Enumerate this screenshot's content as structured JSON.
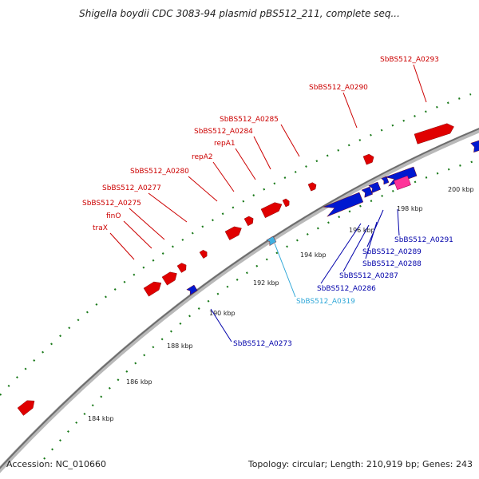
{
  "title": "Shigella boydii CDC 3083-94 plasmid pBS512_211, complete seq...",
  "footer": {
    "accession": "Accession: NC_010660",
    "summary": "Topology: circular; Length: 210,919 bp; Genes: 243"
  },
  "colors": {
    "backbone": "#8a8a8a",
    "tick": "#1a7a1a",
    "forward_gene": "#e00000",
    "reverse_gene": "#0018d0",
    "highlight_gene": "#40b0e0",
    "other_gene": "#ff3399",
    "forward_label": "#cc0000",
    "reverse_label": "#0000aa",
    "highlight_label": "#30a8d8"
  },
  "scale_labels": [
    "184 kbp",
    "186 kbp",
    "188 kbp",
    "190 kbp",
    "192 kbp",
    "194 kbp",
    "196 kbp",
    "198 kbp",
    "200 kbp"
  ],
  "labels": {
    "forward": [
      "traX",
      "finO",
      "SbBS512_A0275",
      "SbBS512_A0277",
      "SbBS512_A0280",
      "repA2",
      "repA1",
      "SbBS512_A0284",
      "SbBS512_A0285",
      "SbBS512_A0290",
      "SbBS512_A0293"
    ],
    "reverse": [
      "SbBS512_A0273",
      "SbBS512_A0286",
      "SbBS512_A0287",
      "SbBS512_A0288",
      "SbBS512_A0289",
      "SbBS512_A0291"
    ],
    "highlight": [
      "SbBS512_A0319"
    ]
  }
}
